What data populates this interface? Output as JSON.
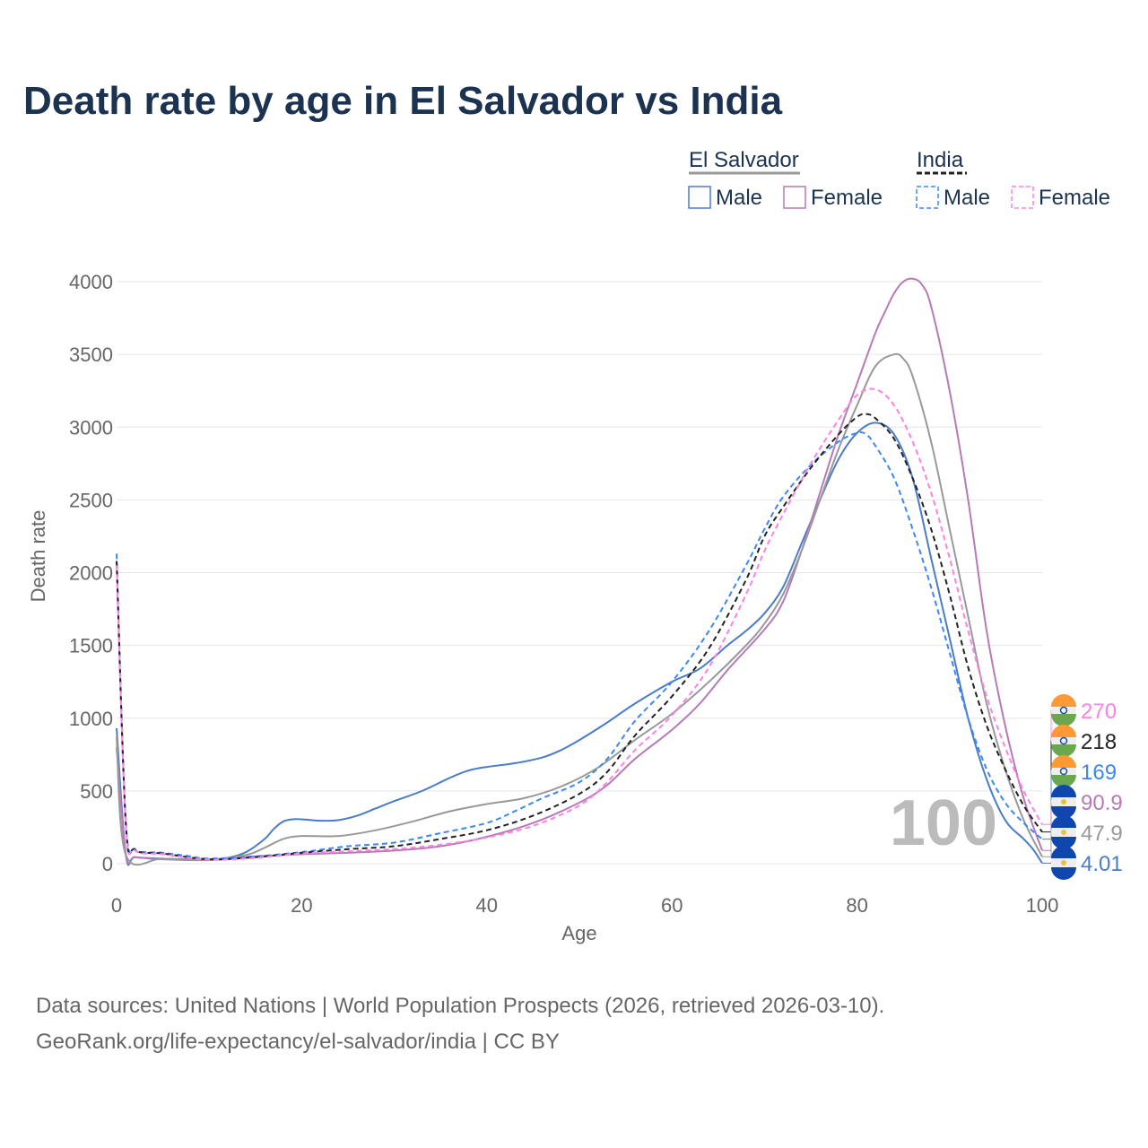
{
  "chart_data": {
    "type": "line",
    "title": "Death rate by age in El Salvador vs India",
    "xlabel": "Age",
    "ylabel": "Death rate",
    "xlim": [
      0,
      100
    ],
    "ylim": [
      0,
      4000
    ],
    "xticks": [
      0,
      20,
      40,
      60,
      80,
      100
    ],
    "yticks": [
      0,
      500,
      1000,
      1500,
      2000,
      2500,
      3000,
      3500,
      4000
    ],
    "annotation": "100",
    "legend": {
      "groups": [
        {
          "name": "El Salvador",
          "items": [
            "Male",
            "Female"
          ]
        },
        {
          "name": "India",
          "items": [
            "Male",
            "Female"
          ]
        }
      ],
      "placement": "top-right"
    },
    "series": [
      {
        "name": "El Salvador Male",
        "country": "El Salvador",
        "color": "#4a7cc9",
        "dash": false,
        "points": [
          [
            0,
            930
          ],
          [
            1,
            60
          ],
          [
            2,
            45
          ],
          [
            5,
            35
          ],
          [
            10,
            30
          ],
          [
            12,
            40
          ],
          [
            14,
            80
          ],
          [
            16,
            170
          ],
          [
            17,
            240
          ],
          [
            18,
            290
          ],
          [
            19,
            305
          ],
          [
            20,
            305
          ],
          [
            22,
            295
          ],
          [
            24,
            300
          ],
          [
            26,
            330
          ],
          [
            28,
            380
          ],
          [
            30,
            430
          ],
          [
            33,
            500
          ],
          [
            36,
            590
          ],
          [
            38,
            640
          ],
          [
            40,
            665
          ],
          [
            43,
            690
          ],
          [
            46,
            730
          ],
          [
            48,
            780
          ],
          [
            50,
            850
          ],
          [
            53,
            970
          ],
          [
            56,
            1100
          ],
          [
            60,
            1250
          ],
          [
            63,
            1340
          ],
          [
            66,
            1500
          ],
          [
            68,
            1600
          ],
          [
            70,
            1720
          ],
          [
            72,
            1900
          ],
          [
            74,
            2200
          ],
          [
            76,
            2500
          ],
          [
            78,
            2780
          ],
          [
            80,
            2960
          ],
          [
            82,
            3030
          ],
          [
            84,
            2950
          ],
          [
            86,
            2650
          ],
          [
            88,
            2100
          ],
          [
            90,
            1550
          ],
          [
            92,
            1000
          ],
          [
            94,
            580
          ],
          [
            96,
            300
          ],
          [
            98,
            170
          ],
          [
            99,
            100
          ],
          [
            100,
            4.01
          ]
        ],
        "end_label": "4.01"
      },
      {
        "name": "El Salvador Female",
        "country": "El Salvador",
        "color": "#b57ab7",
        "dash": false,
        "points": [
          [
            0,
            800
          ],
          [
            1,
            60
          ],
          [
            2,
            45
          ],
          [
            5,
            30
          ],
          [
            10,
            25
          ],
          [
            15,
            50
          ],
          [
            20,
            65
          ],
          [
            25,
            75
          ],
          [
            30,
            90
          ],
          [
            35,
            120
          ],
          [
            40,
            185
          ],
          [
            45,
            280
          ],
          [
            50,
            420
          ],
          [
            53,
            540
          ],
          [
            56,
            720
          ],
          [
            60,
            920
          ],
          [
            63,
            1100
          ],
          [
            66,
            1330
          ],
          [
            70,
            1610
          ],
          [
            72,
            1800
          ],
          [
            74,
            2150
          ],
          [
            76,
            2550
          ],
          [
            78,
            2950
          ],
          [
            80,
            3300
          ],
          [
            82,
            3650
          ],
          [
            83,
            3790
          ],
          [
            84,
            3920
          ],
          [
            85,
            4000
          ],
          [
            86,
            4020
          ],
          [
            87,
            3980
          ],
          [
            88,
            3830
          ],
          [
            90,
            3250
          ],
          [
            92,
            2500
          ],
          [
            94,
            1600
          ],
          [
            96,
            950
          ],
          [
            98,
            450
          ],
          [
            100,
            90.9
          ]
        ],
        "end_label": "90.9"
      },
      {
        "name": "El Salvador",
        "country": "El Salvador",
        "color": "#999999",
        "dash": false,
        "points": [
          [
            0,
            870
          ],
          [
            1,
            60
          ],
          [
            5,
            35
          ],
          [
            10,
            28
          ],
          [
            14,
            60
          ],
          [
            16,
            110
          ],
          [
            18,
            170
          ],
          [
            20,
            190
          ],
          [
            24,
            190
          ],
          [
            28,
            230
          ],
          [
            32,
            290
          ],
          [
            36,
            360
          ],
          [
            40,
            410
          ],
          [
            44,
            450
          ],
          [
            48,
            530
          ],
          [
            52,
            660
          ],
          [
            56,
            850
          ],
          [
            60,
            1030
          ],
          [
            64,
            1250
          ],
          [
            68,
            1500
          ],
          [
            70,
            1650
          ],
          [
            72,
            1850
          ],
          [
            74,
            2150
          ],
          [
            76,
            2500
          ],
          [
            78,
            2850
          ],
          [
            80,
            3150
          ],
          [
            82,
            3420
          ],
          [
            84,
            3500
          ],
          [
            85,
            3470
          ],
          [
            86,
            3350
          ],
          [
            88,
            2900
          ],
          [
            90,
            2300
          ],
          [
            92,
            1700
          ],
          [
            94,
            1100
          ],
          [
            96,
            650
          ],
          [
            98,
            300
          ],
          [
            100,
            47.9
          ]
        ],
        "end_label": "47.9"
      },
      {
        "name": "India Male",
        "country": "India",
        "color": "#3b88f5",
        "dash": true,
        "points": [
          [
            0,
            2130
          ],
          [
            1,
            280
          ],
          [
            2,
            100
          ],
          [
            3,
            80
          ],
          [
            5,
            75
          ],
          [
            8,
            50
          ],
          [
            10,
            35
          ],
          [
            15,
            50
          ],
          [
            20,
            80
          ],
          [
            25,
            120
          ],
          [
            30,
            145
          ],
          [
            35,
            210
          ],
          [
            40,
            280
          ],
          [
            43,
            360
          ],
          [
            46,
            450
          ],
          [
            50,
            560
          ],
          [
            53,
            720
          ],
          [
            56,
            980
          ],
          [
            60,
            1250
          ],
          [
            64,
            1600
          ],
          [
            68,
            2050
          ],
          [
            70,
            2300
          ],
          [
            72,
            2520
          ],
          [
            75,
            2740
          ],
          [
            78,
            2900
          ],
          [
            80,
            2960
          ],
          [
            81,
            2950
          ],
          [
            82,
            2870
          ],
          [
            84,
            2650
          ],
          [
            86,
            2300
          ],
          [
            88,
            1900
          ],
          [
            90,
            1450
          ],
          [
            92,
            1000
          ],
          [
            94,
            650
          ],
          [
            96,
            420
          ],
          [
            98,
            280
          ],
          [
            100,
            169
          ]
        ],
        "end_label": "169"
      },
      {
        "name": "India",
        "country": "India",
        "color": "#222222",
        "dash": true,
        "points": [
          [
            0,
            2080
          ],
          [
            1,
            270
          ],
          [
            2,
            95
          ],
          [
            5,
            70
          ],
          [
            10,
            30
          ],
          [
            15,
            45
          ],
          [
            20,
            75
          ],
          [
            25,
            100
          ],
          [
            30,
            120
          ],
          [
            35,
            170
          ],
          [
            40,
            230
          ],
          [
            45,
            330
          ],
          [
            50,
            480
          ],
          [
            53,
            630
          ],
          [
            56,
            880
          ],
          [
            60,
            1150
          ],
          [
            64,
            1480
          ],
          [
            68,
            1950
          ],
          [
            70,
            2250
          ],
          [
            72,
            2450
          ],
          [
            75,
            2720
          ],
          [
            78,
            2950
          ],
          [
            80,
            3070
          ],
          [
            81,
            3090
          ],
          [
            82,
            3060
          ],
          [
            84,
            2920
          ],
          [
            86,
            2650
          ],
          [
            88,
            2300
          ],
          [
            90,
            1850
          ],
          [
            92,
            1350
          ],
          [
            94,
            950
          ],
          [
            96,
            650
          ],
          [
            98,
            400
          ],
          [
            100,
            218
          ]
        ],
        "end_label": "218"
      },
      {
        "name": "India Female",
        "country": "India",
        "color": "#ff80e6",
        "dash": true,
        "points": [
          [
            0,
            2050
          ],
          [
            1,
            260
          ],
          [
            2,
            90
          ],
          [
            5,
            65
          ],
          [
            10,
            28
          ],
          [
            15,
            40
          ],
          [
            20,
            70
          ],
          [
            25,
            85
          ],
          [
            30,
            100
          ],
          [
            35,
            130
          ],
          [
            40,
            180
          ],
          [
            45,
            260
          ],
          [
            50,
            400
          ],
          [
            53,
            560
          ],
          [
            56,
            780
          ],
          [
            60,
            1020
          ],
          [
            64,
            1350
          ],
          [
            68,
            1850
          ],
          [
            70,
            2150
          ],
          [
            72,
            2400
          ],
          [
            75,
            2750
          ],
          [
            78,
            3050
          ],
          [
            80,
            3220
          ],
          [
            82,
            3260
          ],
          [
            84,
            3150
          ],
          [
            86,
            2900
          ],
          [
            88,
            2550
          ],
          [
            90,
            2100
          ],
          [
            92,
            1600
          ],
          [
            94,
            1150
          ],
          [
            96,
            800
          ],
          [
            98,
            500
          ],
          [
            100,
            270
          ]
        ],
        "end_label": "270"
      }
    ]
  },
  "footer": {
    "line1": "Data sources: United Nations | World Population Prospects (2026, retrieved 2026-03-10).",
    "line2": "GeoRank.org/life-expectancy/el-salvador/india | CC BY"
  }
}
